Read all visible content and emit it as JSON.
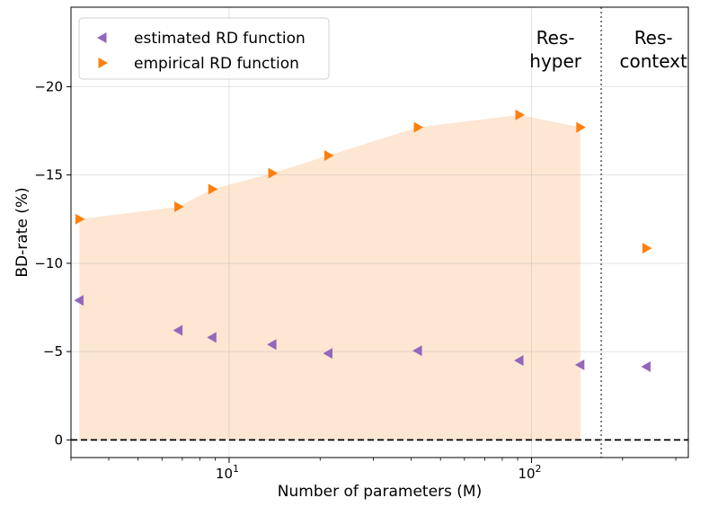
{
  "chart_data": {
    "type": "scatter",
    "title": "",
    "xlabel": "Number of parameters (M)",
    "ylabel": "BD-rate (%)",
    "xscale": "log",
    "xlim": [
      3.0,
      330.0
    ],
    "ylim": [
      1.0,
      -24.5
    ],
    "y_inverted": true,
    "y_ticks": [
      0,
      -5,
      -10,
      -15,
      -20
    ],
    "y_tick_labels": [
      "0",
      "−5",
      "−10",
      "−15",
      "−20"
    ],
    "x_major_ticks": [
      10,
      100
    ],
    "x_tick_labels": [
      {
        "base": "10",
        "exp": "1"
      },
      {
        "base": "10",
        "exp": "2"
      }
    ],
    "x_minor_ticks": [
      3,
      4,
      5,
      6,
      7,
      8,
      9,
      20,
      30,
      40,
      50,
      60,
      70,
      80,
      90,
      200,
      300
    ],
    "grid": true,
    "zero_line": 0,
    "divider_x": 170,
    "region_labels": [
      {
        "name": "res-hyper",
        "line1": "Res-",
        "line2": "hyper",
        "x": 120
      },
      {
        "name": "res-context",
        "line1": "Res-",
        "line2": "context",
        "x": 253
      }
    ],
    "series": [
      {
        "name": "estimated RD function",
        "marker": "triangle-left",
        "color": "#9467bd",
        "fill": "#dfc3d3",
        "x": [
          3.2,
          6.8,
          8.8,
          13.9,
          21.3,
          42.1,
          91.2,
          145.0
        ],
        "y": [
          -7.9,
          -6.2,
          -5.8,
          -5.4,
          -4.9,
          -5.05,
          -4.5,
          -4.25
        ],
        "fill_x_end": 145.0,
        "extra": {
          "x": 240,
          "y": -4.15
        }
      },
      {
        "name": "empirical RD function",
        "marker": "triangle-right",
        "color": "#ff7f0e",
        "fill": "#fde6d2",
        "x": [
          3.2,
          6.8,
          8.8,
          13.9,
          21.3,
          42.1,
          91.2,
          145.0
        ],
        "y": [
          -12.5,
          -13.2,
          -14.2,
          -15.1,
          -16.1,
          -17.7,
          -18.4,
          -17.7
        ],
        "fill_x_end": 145.0,
        "extra": {
          "x": 240,
          "y": -10.85
        }
      }
    ],
    "legend": {
      "position": "top-left",
      "entries": [
        "estimated RD function",
        "empirical RD function"
      ]
    }
  }
}
